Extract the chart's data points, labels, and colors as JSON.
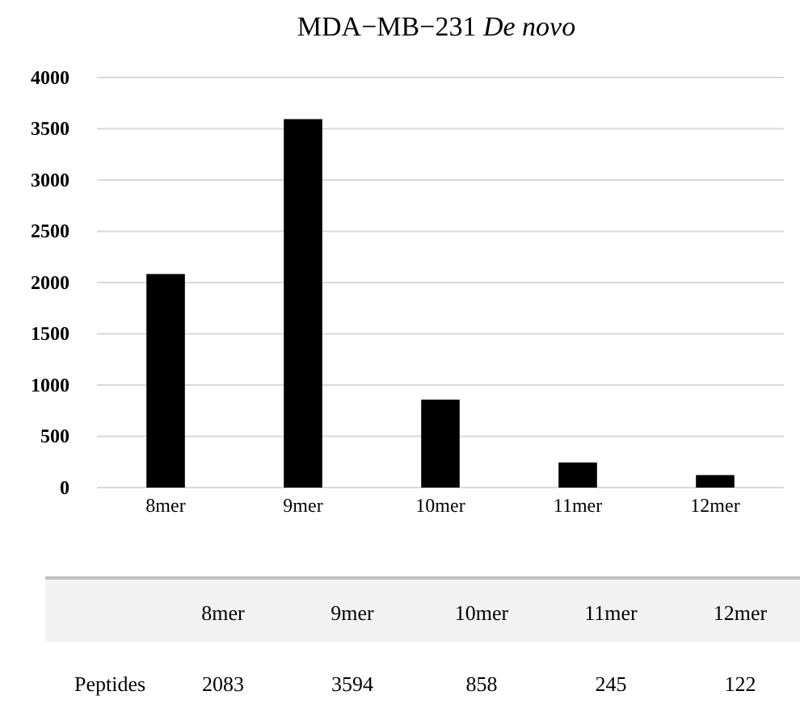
{
  "chart_data": {
    "type": "bar",
    "title": "MDA−MB−231 De novo",
    "categories": [
      "8mer",
      "9mer",
      "10mer",
      "11mer",
      "12mer"
    ],
    "series": [
      {
        "name": "Peptides",
        "color": "#000000",
        "values": [
          2083,
          3594,
          858,
          245,
          122
        ]
      }
    ],
    "ylim": [
      0,
      4000
    ],
    "yticks": [
      0,
      500,
      1000,
      1500,
      2000,
      2500,
      3000,
      3500,
      4000
    ],
    "grid": "y",
    "data_labels": true
  }
}
